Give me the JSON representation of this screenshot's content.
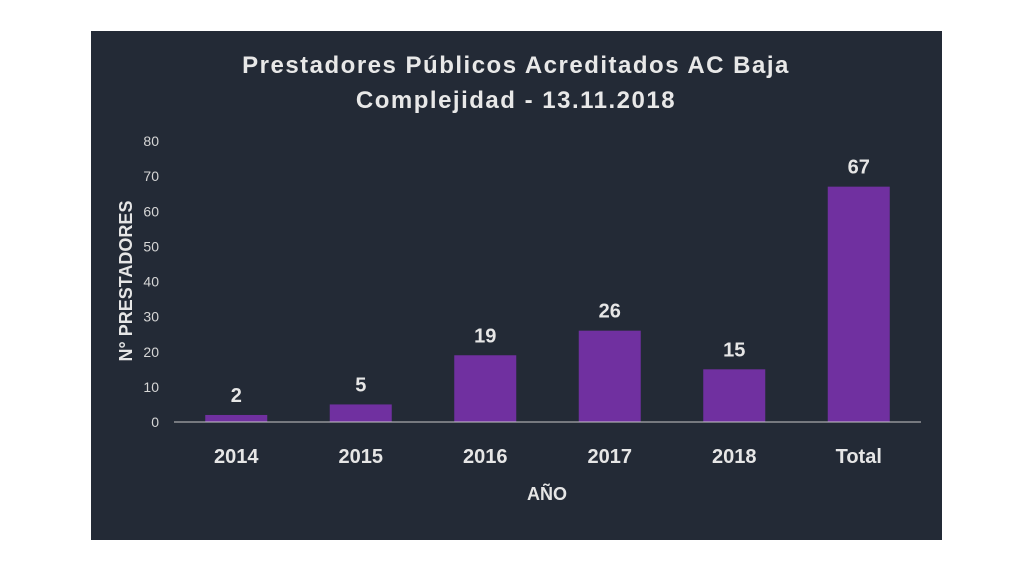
{
  "chart_data": {
    "type": "bar",
    "title_lines": [
      "Prestadores Públicos Acreditados AC Baja",
      "Complejidad - 13.11.2018"
    ],
    "categories": [
      "2014",
      "2015",
      "2016",
      "2017",
      "2018",
      "Total"
    ],
    "values": [
      2,
      5,
      19,
      26,
      15,
      67
    ],
    "data_labels": [
      "2",
      "5",
      "19",
      "26",
      "15",
      "67"
    ],
    "xlabel": "AÑO",
    "ylabel": "N° PRESTADORES",
    "ylim": [
      0,
      80
    ],
    "yticks": [
      "0",
      "10",
      "20",
      "30",
      "40",
      "50",
      "60",
      "70",
      "80"
    ],
    "grid": false,
    "legend": "none",
    "colors": {
      "background": "#232a36",
      "bar": "#7030a0",
      "axis_line": "#c8c8c8",
      "text": "#e6e6e6"
    }
  }
}
